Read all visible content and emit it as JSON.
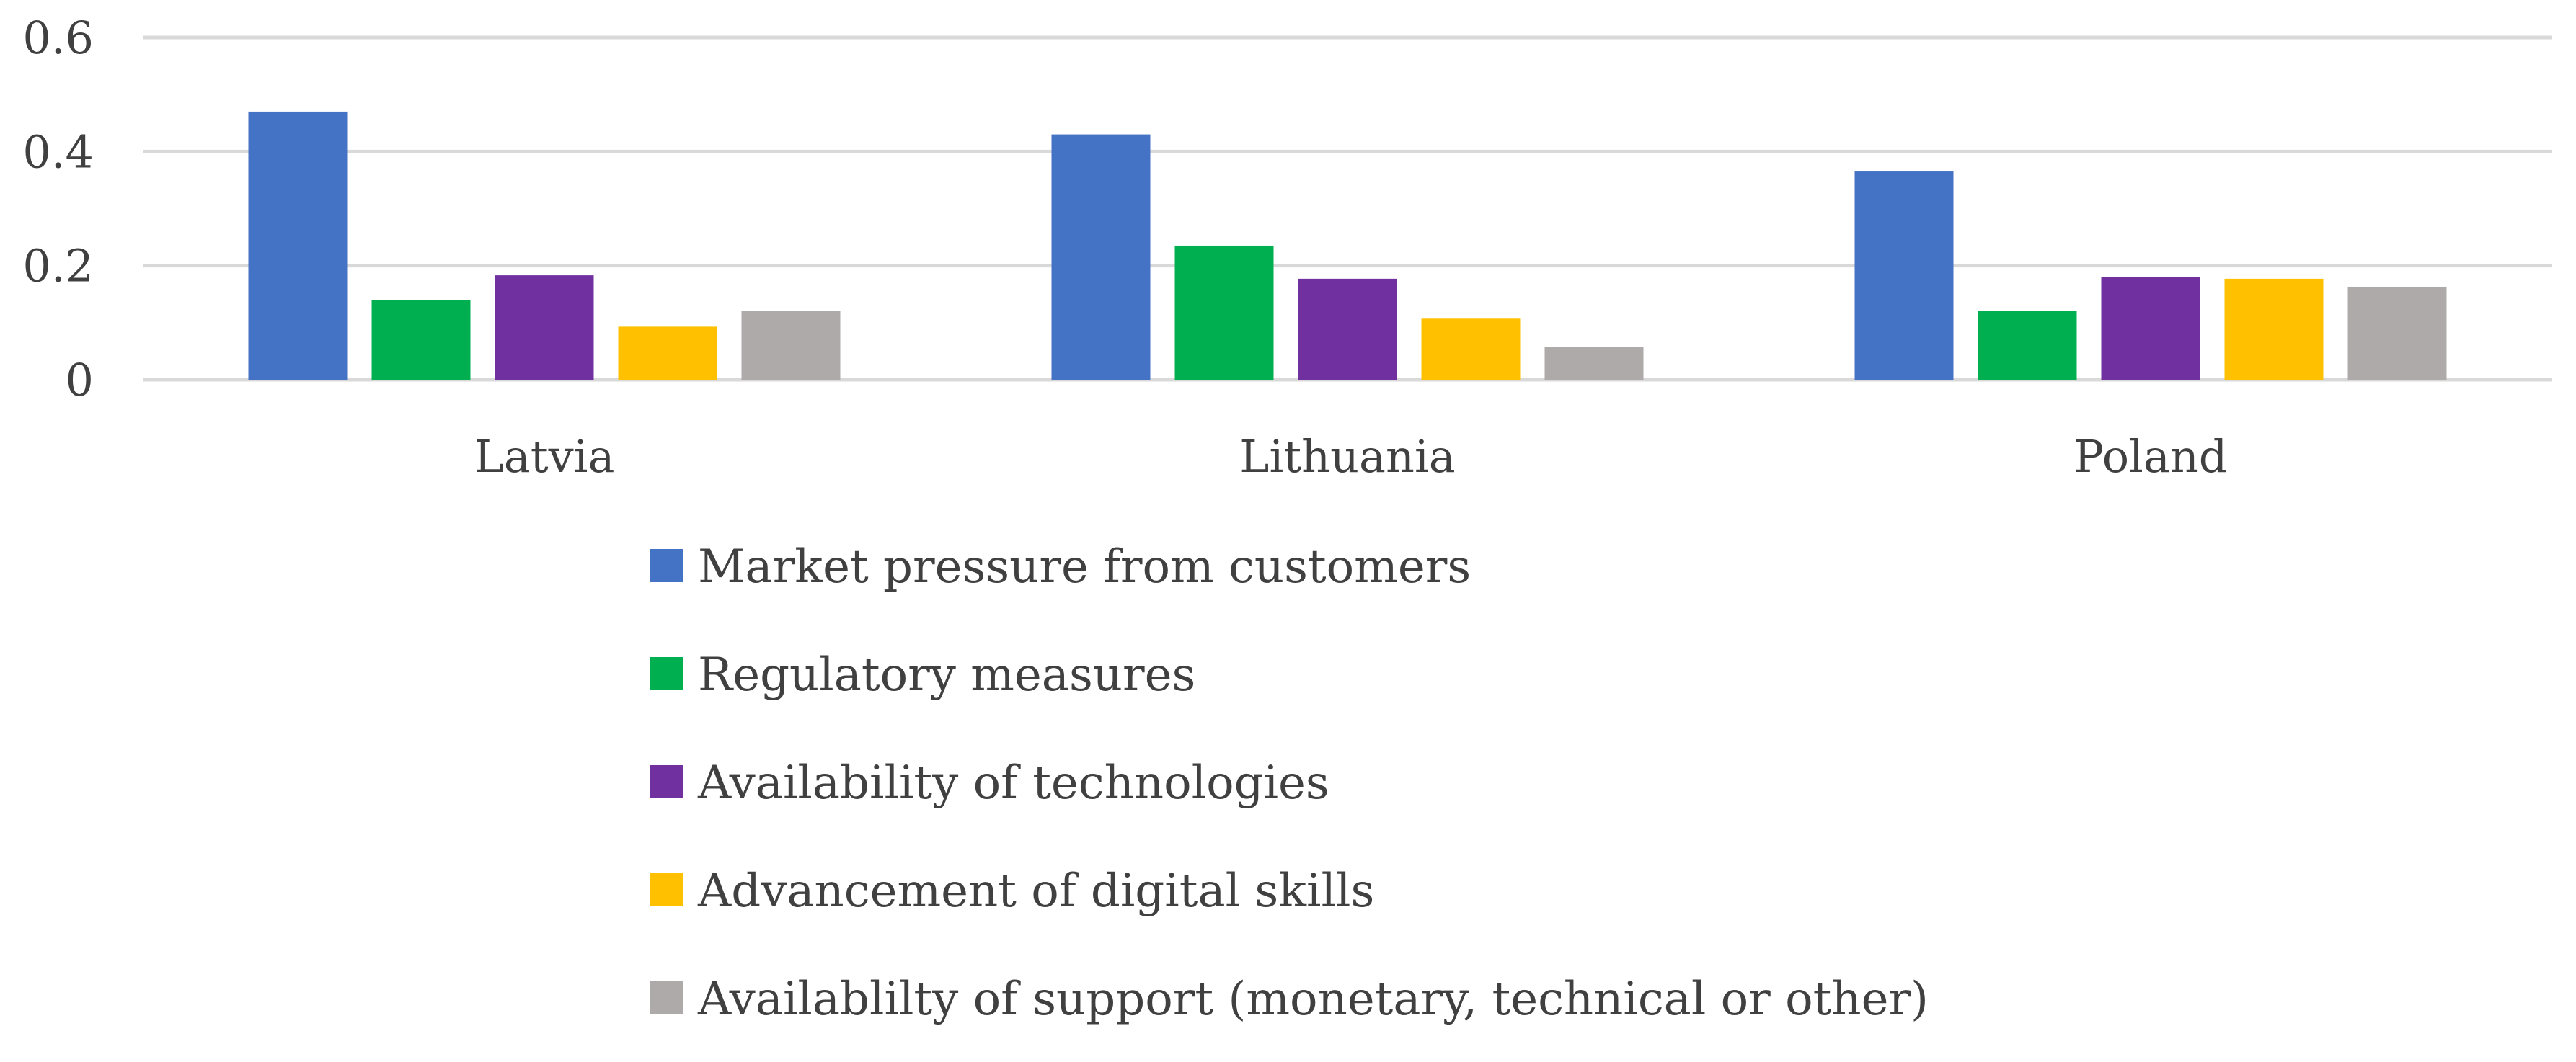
{
  "chart_data": {
    "type": "bar",
    "categories": [
      "Latvia",
      "Lithuania",
      "Poland"
    ],
    "series": [
      {
        "name": "Market pressure from customers",
        "color": "#4472C4",
        "values": [
          0.47,
          0.43,
          0.365
        ]
      },
      {
        "name": "Regulatory measures",
        "color": "#00B050",
        "values": [
          0.14,
          0.235,
          0.12
        ]
      },
      {
        "name": "Availability of technologies",
        "color": "#7030A0",
        "values": [
          0.183,
          0.177,
          0.18
        ]
      },
      {
        "name": "Advancement of digital skills",
        "color": "#FFC000",
        "values": [
          0.093,
          0.107,
          0.177
        ]
      },
      {
        "name": "Availablilty of support (monetary, technical or other)",
        "color": "#ADAAA9",
        "values": [
          0.12,
          0.057,
          0.163
        ]
      }
    ],
    "yticks": [
      "0",
      "0.2",
      "0.4",
      "0.6"
    ],
    "ylim": [
      0,
      0.6
    ],
    "grid": true,
    "legend_position": "bottom",
    "gridline_color": "#D9D9D9"
  }
}
